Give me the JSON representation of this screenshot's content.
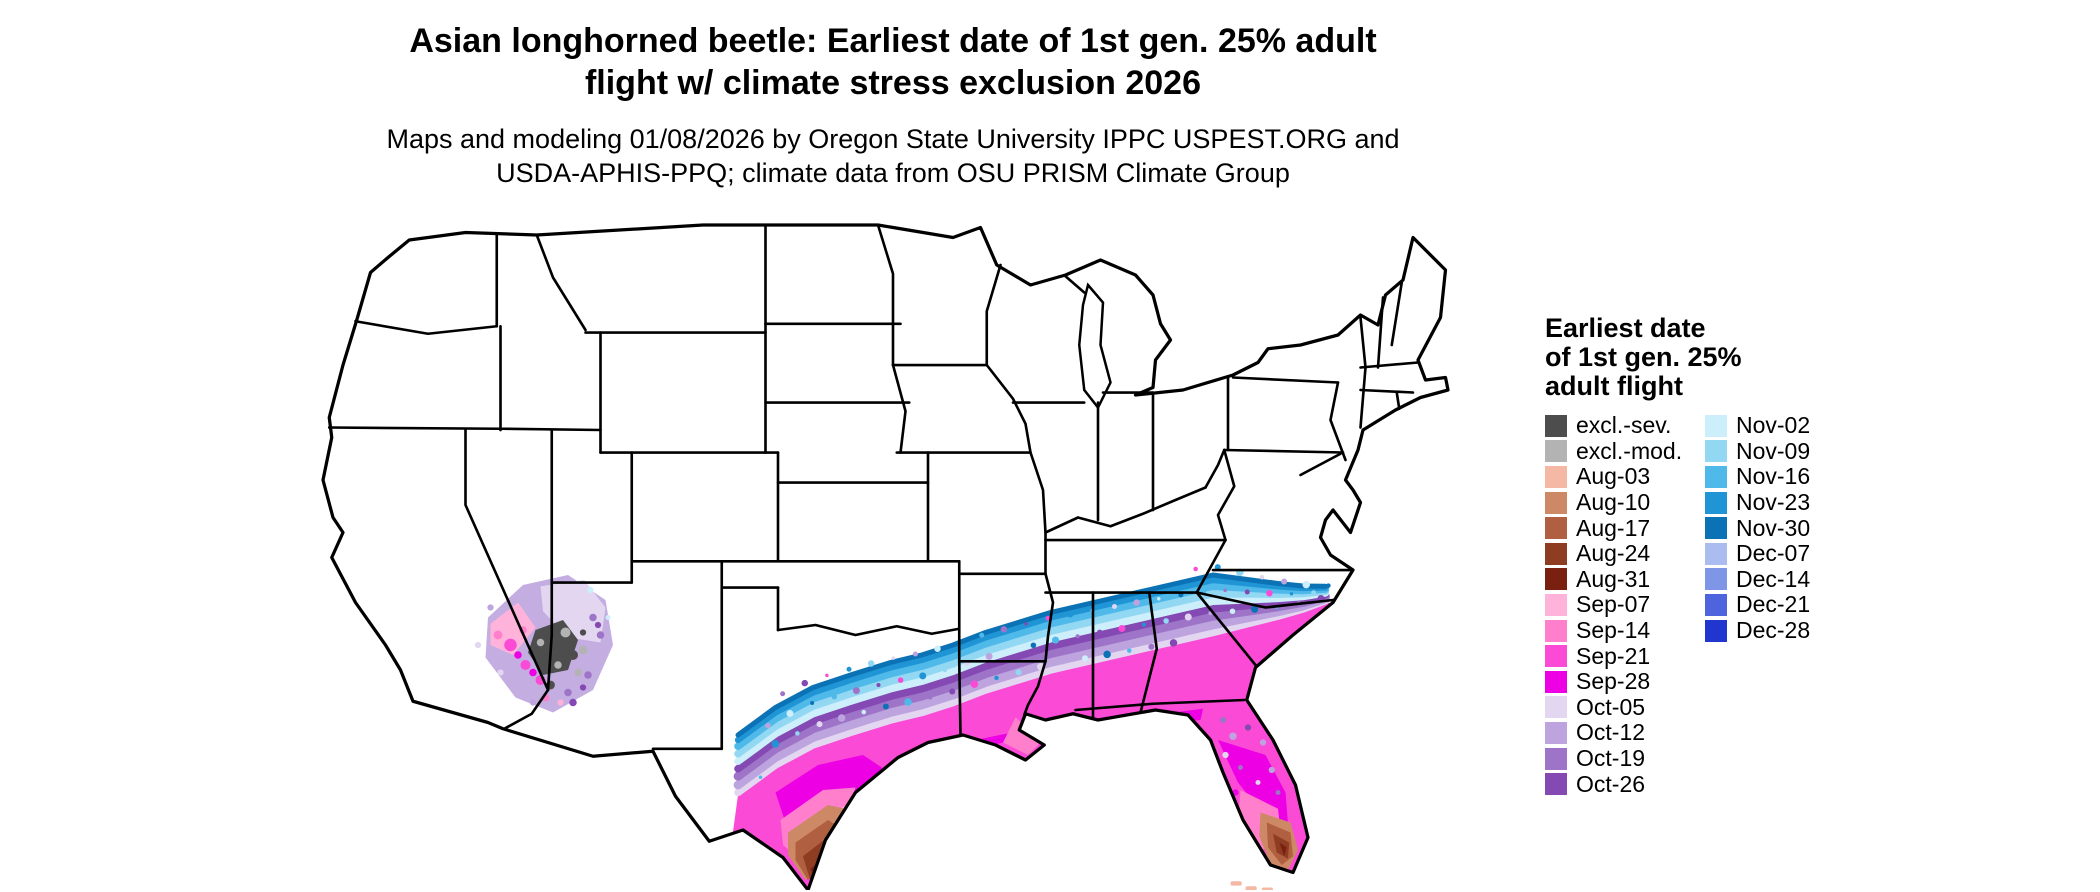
{
  "title": {
    "line1": "Asian longhorned beetle: Earliest date of 1st gen. 25% adult",
    "line2": "flight w/ climate stress exclusion 2026"
  },
  "subtitle": {
    "line1": "Maps and modeling 01/08/2026 by Oregon State University IPPC USPEST.ORG and",
    "line2": "USDA-APHIS-PPQ; climate data from OSU PRISM Climate Group"
  },
  "legend": {
    "title": [
      "Earliest date",
      "of 1st gen. 25%",
      "adult flight"
    ],
    "columns": [
      {
        "entries": [
          {
            "label": "excl.-sev.",
            "color": "#4d4d4d"
          },
          {
            "label": "excl.-mod.",
            "color": "#b3b3b3"
          },
          {
            "label": "Aug-03",
            "color": "#f4b8a4"
          },
          {
            "label": "Aug-10",
            "color": "#cd8966"
          },
          {
            "label": "Aug-17",
            "color": "#b06040"
          },
          {
            "label": "Aug-24",
            "color": "#8f3d22"
          },
          {
            "label": "Aug-31",
            "color": "#7a2010"
          },
          {
            "label": "Sep-07",
            "color": "#ffb3da"
          },
          {
            "label": "Sep-14",
            "color": "#ff7fcc"
          },
          {
            "label": "Sep-21",
            "color": "#fb4ad6"
          },
          {
            "label": "Sep-28",
            "color": "#ee00e4"
          },
          {
            "label": "Oct-05",
            "color": "#e2d6f0"
          },
          {
            "label": "Oct-12",
            "color": "#bda4de"
          },
          {
            "label": "Oct-19",
            "color": "#9d74c8"
          },
          {
            "label": "Oct-26",
            "color": "#8449b2"
          }
        ]
      },
      {
        "entries": [
          {
            "label": "Nov-02",
            "color": "#cdeefb"
          },
          {
            "label": "Nov-09",
            "color": "#93d8f3"
          },
          {
            "label": "Nov-16",
            "color": "#4fb9e9"
          },
          {
            "label": "Nov-23",
            "color": "#1f95d5"
          },
          {
            "label": "Nov-30",
            "color": "#0b72b5"
          },
          {
            "label": "Dec-07",
            "color": "#abbcf0"
          },
          {
            "label": "Dec-14",
            "color": "#7e95e8"
          },
          {
            "label": "Dec-21",
            "color": "#4e64de"
          },
          {
            "label": "Dec-28",
            "color": "#2135cf"
          }
        ]
      }
    ]
  }
}
